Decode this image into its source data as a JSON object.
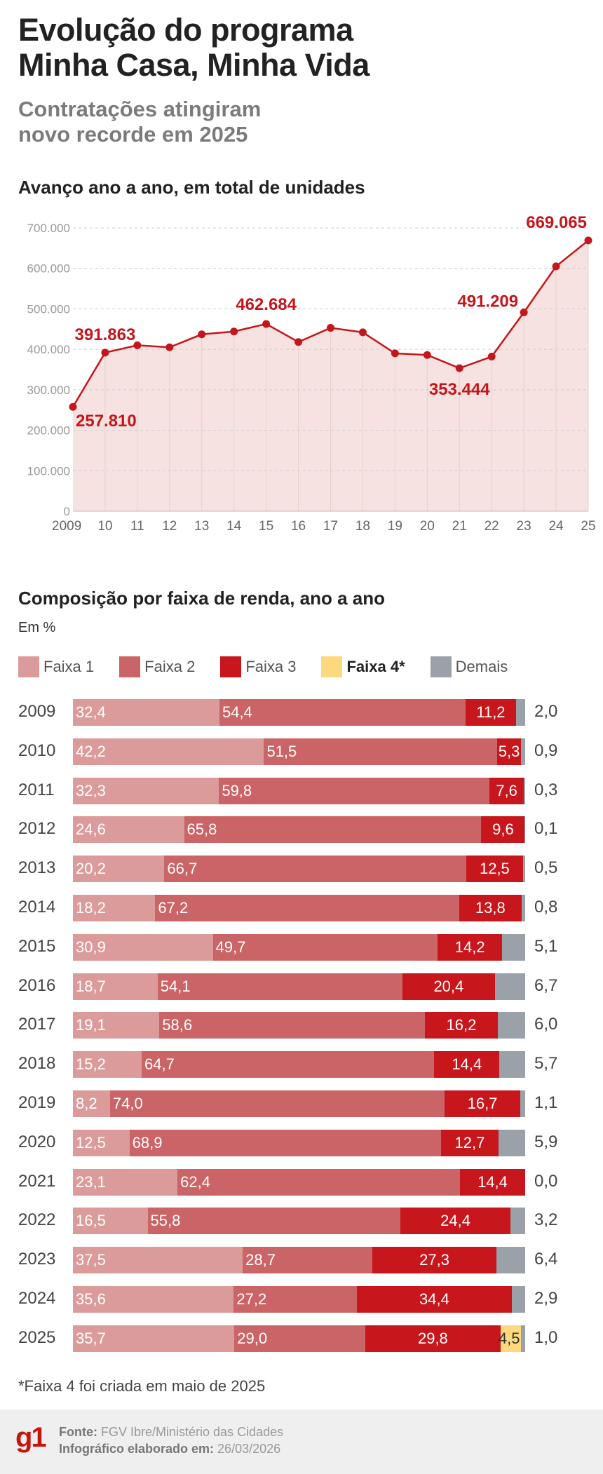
{
  "header": {
    "title_line1": "Evolução do programa",
    "title_line2": "Minha Casa, Minha Vida",
    "subtitle_line1": "Contratações atingiram",
    "subtitle_line2": "novo recorde em 2025"
  },
  "colors": {
    "line": "#c4161c",
    "area": "#f6e3e1",
    "faixa1": "#dc9b9b",
    "faixa2": "#cb6466",
    "faixa3": "#c8161d",
    "faixa4": "#fbd97c",
    "demais": "#9aa1a8"
  },
  "chart_data": [
    {
      "type": "line",
      "title": "Avanço ano a ano, em total de unidades",
      "x": [
        "2009",
        "10",
        "11",
        "12",
        "13",
        "14",
        "15",
        "16",
        "17",
        "18",
        "19",
        "20",
        "21",
        "22",
        "23",
        "24",
        "25"
      ],
      "values": [
        257810,
        391863,
        410000,
        405000,
        437000,
        444000,
        462684,
        418000,
        453000,
        442000,
        390000,
        386000,
        353444,
        382000,
        491209,
        605000,
        669065
      ],
      "labeled_points": {
        "2009": "257.810",
        "10": "391.863",
        "15": "462.684",
        "21": "353.444",
        "23": "491.209",
        "25": "669.065"
      },
      "yticks": [
        "0",
        "100.000",
        "200.000",
        "300.000",
        "400.000",
        "500.000",
        "600.000",
        "700.000"
      ],
      "ylim": [
        0,
        700000
      ],
      "grid": true
    },
    {
      "type": "bar",
      "stacked": true,
      "horizontal": true,
      "title": "Composição por faixa de renda, ano a ano",
      "unit": "Em %",
      "legend": [
        "Faixa 1",
        "Faixa 2",
        "Faixa 3",
        "Faixa 4*",
        "Demais"
      ],
      "categories": [
        "2009",
        "2010",
        "2011",
        "2012",
        "2013",
        "2014",
        "2015",
        "2016",
        "2017",
        "2018",
        "2019",
        "2020",
        "2021",
        "2022",
        "2023",
        "2024",
        "2025"
      ],
      "series": [
        {
          "name": "Faixa 1",
          "values": [
            "32,4",
            "42,2",
            "32,3",
            "24,6",
            "20,2",
            "18,2",
            "30,9",
            "18,7",
            "19,1",
            "15,2",
            "8,2",
            "12,5",
            "23,1",
            "16,5",
            "37,5",
            "35,6",
            "35,7"
          ]
        },
        {
          "name": "Faixa 2",
          "values": [
            "54,4",
            "51,5",
            "59,8",
            "65,8",
            "66,7",
            "67,2",
            "49,7",
            "54,1",
            "58,6",
            "64,7",
            "74,0",
            "68,9",
            "62,4",
            "55,8",
            "28,7",
            "27,2",
            "29,0"
          ]
        },
        {
          "name": "Faixa 3",
          "values": [
            "11,2",
            "5,3",
            "7,6",
            "9,6",
            "12,5",
            "13,8",
            "14,2",
            "20,4",
            "16,2",
            "14,4",
            "16,7",
            "12,7",
            "14,4",
            "24,4",
            "27,3",
            "34,4",
            "29,8"
          ]
        },
        {
          "name": "Faixa 4*",
          "values": [
            null,
            null,
            null,
            null,
            null,
            null,
            null,
            null,
            null,
            null,
            null,
            null,
            null,
            null,
            null,
            null,
            "4,5"
          ]
        },
        {
          "name": "Demais",
          "values": [
            "2,0",
            "0,9",
            "0,3",
            "0,1",
            "0,5",
            "0,8",
            "5,1",
            "6,7",
            "6,0",
            "5,7",
            "1,1",
            "5,9",
            "0,0",
            "3,2",
            "6,4",
            "2,9",
            "1,0"
          ]
        }
      ],
      "footnote": "*Faixa 4 foi criada em maio de 2025"
    }
  ],
  "footer": {
    "logo": "g1",
    "source_label": "Fonte:",
    "source": "FGV Ibre/Ministério das Cidades",
    "date_label": "Infográfico elaborado em:",
    "date": "26/03/2026"
  }
}
